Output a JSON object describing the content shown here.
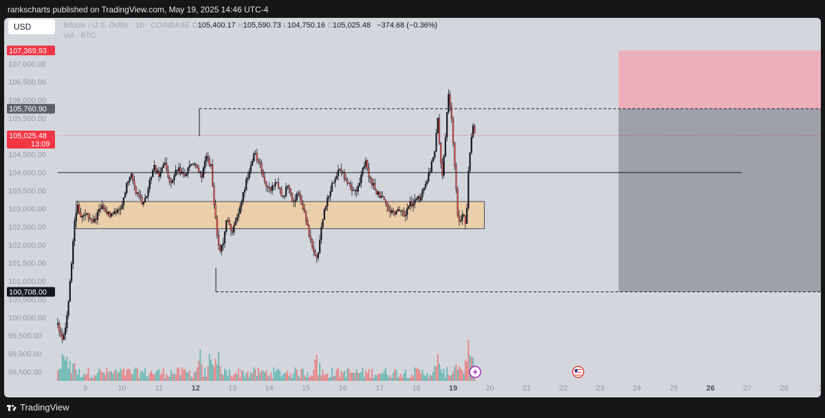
{
  "header": {
    "published": "rankscharts published on TradingView.com, May 19, 2025 14:46 UTC-4"
  },
  "toolbar": {
    "currency": "USD"
  },
  "legend": {
    "symbol": "Bitcoin / U.S. Dollar · 1h · COINBASE",
    "open_label": "O",
    "open": "105,400.17",
    "high_label": "H",
    "high": "105,590.73",
    "low_label": "L",
    "low": "104,750.16",
    "close_label": "C",
    "close": "105,025.48",
    "change": "−374.68 (−0.36%)",
    "volume_label": "Vol · BTC"
  },
  "footer": {
    "brand": "TradingView"
  },
  "chart_data": {
    "type": "candlestick",
    "symbol": "Bitcoin / U.S. Dollar",
    "interval": "1h",
    "exchange": "COINBASE",
    "y_axis": {
      "min": 98250,
      "max": 107700,
      "ticks": [
        98500,
        99000,
        99500,
        100000,
        100500,
        101000,
        101500,
        102000,
        102500,
        103000,
        103500,
        104000,
        104500,
        105000,
        105500,
        106000,
        106500,
        107000
      ],
      "tick_labels": [
        "98,500.00",
        "99,000.00",
        "99,500.00",
        "100,000.00",
        "100,500.00",
        "101,000.00",
        "101,500.00",
        "102,000.00",
        "102,500.00",
        "103,000.00",
        "103,500.00",
        "104,000.00",
        "104,500.00",
        "105,000.00",
        "105,500.00",
        "106,000.00",
        "106,500.00",
        "107,000.00"
      ]
    },
    "x_axis": {
      "start_day": 8.25,
      "end_day": 29,
      "ticks": [
        {
          "day": 9,
          "label": "9",
          "bold": false
        },
        {
          "day": 10,
          "label": "10",
          "bold": false
        },
        {
          "day": 11,
          "label": "11",
          "bold": false
        },
        {
          "day": 12,
          "label": "12",
          "bold": true
        },
        {
          "day": 13,
          "label": "13",
          "bold": false
        },
        {
          "day": 14,
          "label": "14",
          "bold": false
        },
        {
          "day": 15,
          "label": "15",
          "bold": false
        },
        {
          "day": 16,
          "label": "16",
          "bold": false
        },
        {
          "day": 17,
          "label": "17",
          "bold": false
        },
        {
          "day": 18,
          "label": "18",
          "bold": false
        },
        {
          "day": 19,
          "label": "19",
          "bold": true
        },
        {
          "day": 20,
          "label": "20",
          "bold": false
        },
        {
          "day": 21,
          "label": "21",
          "bold": false
        },
        {
          "day": 22,
          "label": "22",
          "bold": false
        },
        {
          "day": 23,
          "label": "23",
          "bold": false
        },
        {
          "day": 24,
          "label": "24",
          "bold": false
        },
        {
          "day": 25,
          "label": "25",
          "bold": false
        },
        {
          "day": 26,
          "label": "26",
          "bold": true
        },
        {
          "day": 27,
          "label": "27",
          "bold": false
        },
        {
          "day": 28,
          "label": "28",
          "bold": false
        },
        {
          "day": 29,
          "label": "2",
          "bold": false
        }
      ]
    },
    "price_path": [
      [
        8.25,
        99800
      ],
      [
        8.35,
        99400
      ],
      [
        8.45,
        99600
      ],
      [
        8.55,
        100600
      ],
      [
        8.62,
        101400
      ],
      [
        8.7,
        102700
      ],
      [
        8.78,
        103100
      ],
      [
        8.9,
        102700
      ],
      [
        9.05,
        102900
      ],
      [
        9.2,
        102600
      ],
      [
        9.35,
        102900
      ],
      [
        9.5,
        103100
      ],
      [
        9.65,
        102800
      ],
      [
        9.8,
        102900
      ],
      [
        10.0,
        103100
      ],
      [
        10.1,
        103600
      ],
      [
        10.25,
        103900
      ],
      [
        10.4,
        103400
      ],
      [
        10.55,
        103200
      ],
      [
        10.7,
        103500
      ],
      [
        10.85,
        104200
      ],
      [
        11.0,
        103900
      ],
      [
        11.15,
        104300
      ],
      [
        11.3,
        103700
      ],
      [
        11.5,
        104100
      ],
      [
        11.7,
        103900
      ],
      [
        11.9,
        104300
      ],
      [
        12.05,
        104100
      ],
      [
        12.15,
        103900
      ],
      [
        12.3,
        104400
      ],
      [
        12.42,
        104200
      ],
      [
        12.5,
        103100
      ],
      [
        12.58,
        102300
      ],
      [
        12.65,
        101800
      ],
      [
        12.75,
        102100
      ],
      [
        12.85,
        102700
      ],
      [
        13.0,
        102400
      ],
      [
        13.15,
        102800
      ],
      [
        13.3,
        103500
      ],
      [
        13.45,
        104000
      ],
      [
        13.6,
        104500
      ],
      [
        13.75,
        104200
      ],
      [
        13.9,
        103700
      ],
      [
        14.05,
        103500
      ],
      [
        14.2,
        103800
      ],
      [
        14.35,
        103300
      ],
      [
        14.5,
        103600
      ],
      [
        14.65,
        103200
      ],
      [
        14.8,
        103400
      ],
      [
        14.95,
        102900
      ],
      [
        15.1,
        102200
      ],
      [
        15.22,
        101800
      ],
      [
        15.32,
        101600
      ],
      [
        15.45,
        102700
      ],
      [
        15.6,
        103300
      ],
      [
        15.75,
        103800
      ],
      [
        15.9,
        104100
      ],
      [
        16.05,
        103900
      ],
      [
        16.2,
        103600
      ],
      [
        16.35,
        103500
      ],
      [
        16.5,
        103900
      ],
      [
        16.62,
        104300
      ],
      [
        16.75,
        103800
      ],
      [
        16.9,
        103500
      ],
      [
        17.05,
        103300
      ],
      [
        17.2,
        103100
      ],
      [
        17.35,
        102900
      ],
      [
        17.5,
        103000
      ],
      [
        17.65,
        102800
      ],
      [
        17.8,
        103100
      ],
      [
        17.95,
        103200
      ],
      [
        18.1,
        103300
      ],
      [
        18.25,
        103700
      ],
      [
        18.38,
        104100
      ],
      [
        18.5,
        104500
      ],
      [
        18.58,
        105500
      ],
      [
        18.65,
        104400
      ],
      [
        18.72,
        103900
      ],
      [
        18.8,
        105200
      ],
      [
        18.88,
        106200
      ],
      [
        18.96,
        105400
      ],
      [
        19.04,
        104300
      ],
      [
        19.12,
        102800
      ],
      [
        19.2,
        102600
      ],
      [
        19.28,
        102900
      ],
      [
        19.35,
        102400
      ],
      [
        19.42,
        104100
      ],
      [
        19.5,
        104900
      ],
      [
        19.56,
        105400
      ],
      [
        19.6,
        105025
      ]
    ],
    "volume_peak_days": [
      8.4,
      8.5,
      8.65,
      12.1,
      12.4,
      12.6,
      15.3,
      18.6,
      19.1,
      19.4,
      19.5
    ],
    "price_labels": [
      {
        "value": 107369.93,
        "label": "107,369.93",
        "color": "#f23645"
      },
      {
        "value": 105760.9,
        "label": "105,760.90",
        "color": "#5d606b"
      },
      {
        "value": 105025.48,
        "label": "105,025.48",
        "sublabel": "13:09",
        "color": "#f23645"
      },
      {
        "value": 100708.0,
        "label": "100,708.00",
        "color": "#131722"
      }
    ],
    "horizontal_line": {
      "value": 104000,
      "day_from": 8.25,
      "day_to": 26.85
    },
    "dashed_lines": [
      {
        "value": 105760.9,
        "day_from": 12.1,
        "day_to": 29
      },
      {
        "value": 100708,
        "day_from": 12.55,
        "day_to": 29
      }
    ],
    "support_zone": {
      "from_price": 102450,
      "to_price": 103200,
      "day_from": 8.75,
      "day_to": 19.85,
      "color": "#f3cc99"
    },
    "position": {
      "day_from": 23.5,
      "day_to": 29,
      "stop_price": 107369.93,
      "entry_price": 105760.9,
      "target_price": 100708,
      "stop_color": "#f5a3ab",
      "target_color": "#5d606b"
    },
    "events": [
      {
        "day": 19.6,
        "icon": "lightning-icon",
        "color": "#9c27b0"
      },
      {
        "day": 22.4,
        "icon": "us-flag-icon",
        "color": "#e53935"
      }
    ],
    "colors": {
      "up": "#26a69a",
      "down": "#ef5350",
      "candle_body": "#131722",
      "background": "#d4d6de"
    }
  }
}
